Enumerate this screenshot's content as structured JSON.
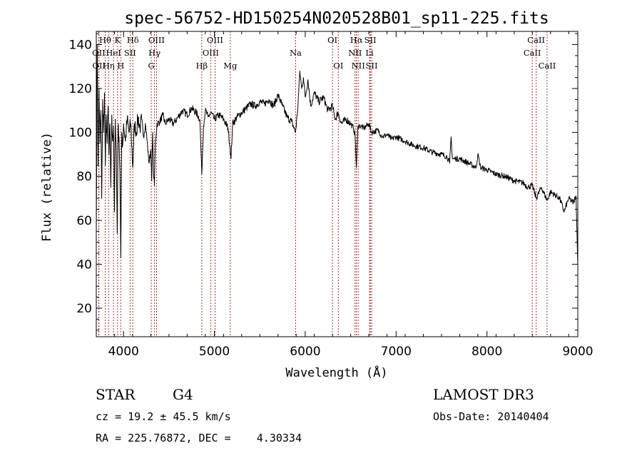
{
  "chart_data": {
    "type": "line",
    "title": "spec-56752-HD150254N020528B01_sp11-225.fits",
    "xlabel": "Wavelength (Å)",
    "ylabel": "Flux (relative)",
    "xlim": [
      3700,
      9000
    ],
    "ylim": [
      7,
      146
    ],
    "xticks": [
      4000,
      5000,
      6000,
      7000,
      8000,
      9000
    ],
    "yticks": [
      20,
      40,
      60,
      80,
      100,
      120,
      140
    ],
    "grid": false,
    "series": [
      {
        "name": "spectrum",
        "anchors": [
          [
            3700,
            55
          ],
          [
            3710,
            140
          ],
          [
            3720,
            85
          ],
          [
            3730,
            120
          ],
          [
            3740,
            95
          ],
          [
            3750,
            110
          ],
          [
            3760,
            70
          ],
          [
            3770,
            115
          ],
          [
            3780,
            100
          ],
          [
            3790,
            118
          ],
          [
            3800,
            85
          ],
          [
            3810,
            108
          ],
          [
            3820,
            95
          ],
          [
            3830,
            112
          ],
          [
            3840,
            90
          ],
          [
            3850,
            104
          ],
          [
            3860,
            75
          ],
          [
            3870,
            108
          ],
          [
            3880,
            96
          ],
          [
            3890,
            103
          ],
          [
            3900,
            64
          ],
          [
            3910,
            106
          ],
          [
            3920,
            93
          ],
          [
            3930,
            54
          ],
          [
            3940,
            102
          ],
          [
            3950,
            98
          ],
          [
            3960,
            82
          ],
          [
            3965,
            60
          ],
          [
            3970,
            43
          ],
          [
            3980,
            100
          ],
          [
            3990,
            94
          ],
          [
            4000,
            104
          ],
          [
            4020,
            96
          ],
          [
            4040,
            106
          ],
          [
            4060,
            100
          ],
          [
            4080,
            104
          ],
          [
            4101,
            84
          ],
          [
            4120,
            104
          ],
          [
            4140,
            100
          ],
          [
            4160,
            107
          ],
          [
            4180,
            102
          ],
          [
            4200,
            106
          ],
          [
            4220,
            98
          ],
          [
            4240,
            104
          ],
          [
            4260,
            96
          ],
          [
            4280,
            86
          ],
          [
            4300,
            92
          ],
          [
            4310,
            78
          ],
          [
            4320,
            100
          ],
          [
            4330,
            82
          ],
          [
            4340,
            76
          ],
          [
            4350,
            96
          ],
          [
            4370,
            104
          ],
          [
            4400,
            105
          ],
          [
            4430,
            108
          ],
          [
            4460,
            104
          ],
          [
            4500,
            106
          ],
          [
            4550,
            104
          ],
          [
            4600,
            107
          ],
          [
            4650,
            110
          ],
          [
            4700,
            108
          ],
          [
            4750,
            111
          ],
          [
            4800,
            109
          ],
          [
            4840,
            106
          ],
          [
            4861,
            81
          ],
          [
            4880,
            103
          ],
          [
            4900,
            110
          ],
          [
            4930,
            107
          ],
          [
            4960,
            109
          ],
          [
            5000,
            106
          ],
          [
            5050,
            108
          ],
          [
            5100,
            106
          ],
          [
            5150,
            102
          ],
          [
            5172,
            93
          ],
          [
            5183,
            88
          ],
          [
            5200,
            104
          ],
          [
            5250,
            107
          ],
          [
            5300,
            109
          ],
          [
            5350,
            111
          ],
          [
            5400,
            113
          ],
          [
            5450,
            112
          ],
          [
            5500,
            114
          ],
          [
            5550,
            113
          ],
          [
            5600,
            115
          ],
          [
            5650,
            112
          ],
          [
            5700,
            117
          ],
          [
            5750,
            112
          ],
          [
            5800,
            107
          ],
          [
            5850,
            105
          ],
          [
            5893,
            100
          ],
          [
            5920,
            112
          ],
          [
            5940,
            128
          ],
          [
            5960,
            120
          ],
          [
            5980,
            125
          ],
          [
            6000,
            116
          ],
          [
            6030,
            124
          ],
          [
            6060,
            112
          ],
          [
            6100,
            118
          ],
          [
            6150,
            114
          ],
          [
            6200,
            116
          ],
          [
            6250,
            110
          ],
          [
            6300,
            112
          ],
          [
            6330,
            106
          ],
          [
            6360,
            109
          ],
          [
            6400,
            104
          ],
          [
            6450,
            106
          ],
          [
            6500,
            104
          ],
          [
            6530,
            102
          ],
          [
            6548,
            99
          ],
          [
            6563,
            84
          ],
          [
            6580,
            103
          ],
          [
            6600,
            103
          ],
          [
            6650,
            102
          ],
          [
            6700,
            104
          ],
          [
            6730,
            100
          ],
          [
            6800,
            101
          ],
          [
            6850,
            98
          ],
          [
            6900,
            99
          ],
          [
            6950,
            97
          ],
          [
            7000,
            98
          ],
          [
            7100,
            96
          ],
          [
            7200,
            94
          ],
          [
            7300,
            93
          ],
          [
            7400,
            91
          ],
          [
            7500,
            90
          ],
          [
            7560,
            89
          ],
          [
            7590,
            86
          ],
          [
            7605,
            98
          ],
          [
            7620,
            88
          ],
          [
            7700,
            88
          ],
          [
            7800,
            86
          ],
          [
            7880,
            84
          ],
          [
            7900,
            90
          ],
          [
            7930,
            84
          ],
          [
            8000,
            83
          ],
          [
            8100,
            81
          ],
          [
            8200,
            80
          ],
          [
            8300,
            78
          ],
          [
            8400,
            77
          ],
          [
            8450,
            75
          ],
          [
            8500,
            76
          ],
          [
            8542,
            70
          ],
          [
            8600,
            75
          ],
          [
            8662,
            69
          ],
          [
            8700,
            73
          ],
          [
            8800,
            70
          ],
          [
            8850,
            64
          ],
          [
            8900,
            70
          ],
          [
            8950,
            68
          ],
          [
            8980,
            71
          ],
          [
            9000,
            40
          ]
        ]
      }
    ],
    "lines": [
      {
        "label": "OII",
        "wave": 3727,
        "row": 1
      },
      {
        "label": "OII",
        "wave": 3729,
        "row": 2
      },
      {
        "label": "Hθ",
        "wave": 3798,
        "row": 0
      },
      {
        "label": "Hη",
        "wave": 3835,
        "row": 2
      },
      {
        "label": "HeI",
        "wave": 3889,
        "row": 1
      },
      {
        "label": "K",
        "wave": 3934,
        "row": 0
      },
      {
        "label": "H",
        "wave": 3969,
        "row": 2
      },
      {
        "label": "SII",
        "wave": 4072,
        "row": 1
      },
      {
        "label": "Hδ",
        "wave": 4102,
        "row": 0
      },
      {
        "label": "G",
        "wave": 4305,
        "row": 2
      },
      {
        "label": "Hγ",
        "wave": 4341,
        "row": 1
      },
      {
        "label": "OIII",
        "wave": 4363,
        "row": 0
      },
      {
        "label": "Hβ",
        "wave": 4861,
        "row": 2
      },
      {
        "label": "OIII",
        "wave": 4959,
        "row": 1
      },
      {
        "label": "OIII",
        "wave": 5007,
        "row": 0
      },
      {
        "label": "Mg",
        "wave": 5175,
        "row": 2
      },
      {
        "label": "Na",
        "wave": 5894,
        "row": 1
      },
      {
        "label": "OI",
        "wave": 6300,
        "row": 0
      },
      {
        "label": "OI",
        "wave": 6364,
        "row": 2
      },
      {
        "label": "NII",
        "wave": 6548,
        "row": 1
      },
      {
        "label": "Hα",
        "wave": 6563,
        "row": 0
      },
      {
        "label": "NII",
        "wave": 6583,
        "row": 2
      },
      {
        "label": "Li",
        "wave": 6708,
        "row": 1
      },
      {
        "label": "SII",
        "wave": 6716,
        "row": 0
      },
      {
        "label": "SII",
        "wave": 6731,
        "row": 2
      },
      {
        "label": "CaII",
        "wave": 8498,
        "row": 1
      },
      {
        "label": "CaII",
        "wave": 8542,
        "row": 0
      },
      {
        "label": "CaII",
        "wave": 8662,
        "row": 2
      }
    ]
  },
  "info": {
    "object_class": "STAR",
    "subclass": "G4",
    "survey": "LAMOST DR3",
    "cz": "cz = 19.2 ± 45.5 km/s",
    "obs_date": "Obs-Date: 20140404",
    "radec": "RA = 225.76872, DEC =    4.30334"
  },
  "colors": {
    "line_marker": "#a01818",
    "spectrum": "#000000",
    "axis": "#000000",
    "background": "#ffffff"
  }
}
